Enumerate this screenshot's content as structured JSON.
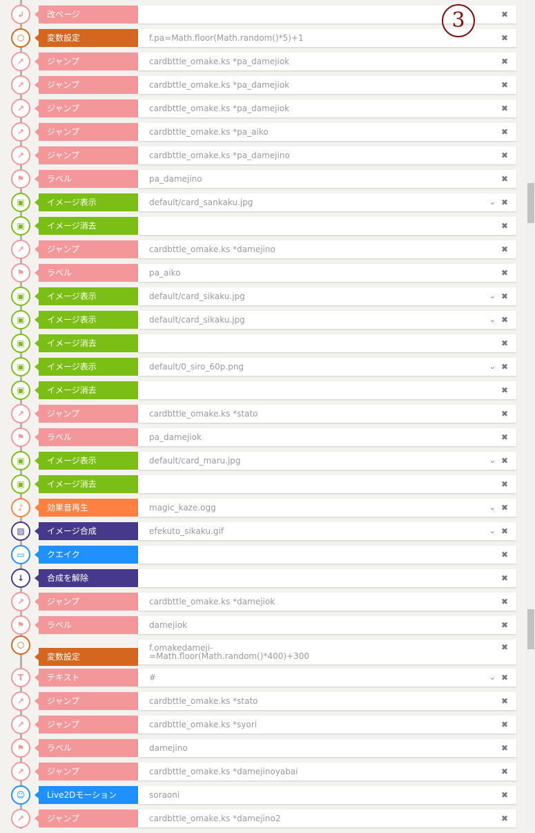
{
  "colors": {
    "jump": "#f4979a",
    "variable": "#d5661f",
    "image": "#7bbf16",
    "sound": "#ff8040",
    "compose": "#46388a",
    "quake": "#1e90ff",
    "live2d": "#1e90ff",
    "text": "#f4979a",
    "label": "#f4979a",
    "page": "#f4979a"
  },
  "annotation": "3",
  "rows": [
    {
      "type": "page",
      "icon": "return-icon",
      "label": "改ページ",
      "value": ""
    },
    {
      "type": "variable",
      "icon": "cube-icon",
      "label": "変数設定",
      "value": "f.pa=Math.floor(Math.random()*5)+1"
    },
    {
      "type": "jump",
      "icon": "jump-icon",
      "label": "ジャンプ",
      "value": "cardbttle_omake.ks *pa_damejiok"
    },
    {
      "type": "jump",
      "icon": "jump-icon",
      "label": "ジャンプ",
      "value": "cardbttle_omake.ks *pa_damejiok"
    },
    {
      "type": "jump",
      "icon": "jump-icon",
      "label": "ジャンプ",
      "value": "cardbttle_omake.ks *pa_damejiok"
    },
    {
      "type": "jump",
      "icon": "jump-icon",
      "label": "ジャンプ",
      "value": "cardbttle_omake.ks *pa_aiko"
    },
    {
      "type": "jump",
      "icon": "jump-icon",
      "label": "ジャンプ",
      "value": "cardbttle_omake.ks *pa_damejino"
    },
    {
      "type": "label",
      "icon": "flag-icon",
      "label": "ラベル",
      "value": "pa_damejino"
    },
    {
      "type": "image",
      "icon": "image-show-icon",
      "label": "イメージ表示",
      "value": "default/card_sankaku.jpg",
      "chevron": true
    },
    {
      "type": "image",
      "icon": "image-clear-icon",
      "label": "イメージ消去",
      "value": ""
    },
    {
      "type": "jump",
      "icon": "jump-icon",
      "label": "ジャンプ",
      "value": "cardbttle_omake.ks *damejino"
    },
    {
      "type": "label",
      "icon": "flag-icon",
      "label": "ラベル",
      "value": "pa_aiko"
    },
    {
      "type": "image",
      "icon": "image-show-icon",
      "label": "イメージ表示",
      "value": "default/card_sikaku.jpg",
      "chevron": true
    },
    {
      "type": "image",
      "icon": "image-show-icon",
      "label": "イメージ表示",
      "value": "default/card_sikaku.jpg",
      "chevron": true
    },
    {
      "type": "image",
      "icon": "image-clear-icon",
      "label": "イメージ消去",
      "value": ""
    },
    {
      "type": "image",
      "icon": "image-show-icon",
      "label": "イメージ表示",
      "value": "default/0_siro_60p.png",
      "chevron": true
    },
    {
      "type": "image",
      "icon": "image-clear-icon",
      "label": "イメージ消去",
      "value": ""
    },
    {
      "type": "jump",
      "icon": "jump-icon",
      "label": "ジャンプ",
      "value": "cardbttle_omake.ks *stato"
    },
    {
      "type": "label",
      "icon": "flag-icon",
      "label": "ラベル",
      "value": "pa_damejiok"
    },
    {
      "type": "image",
      "icon": "image-show-icon",
      "label": "イメージ表示",
      "value": "default/card_maru.jpg",
      "chevron": true
    },
    {
      "type": "image",
      "icon": "image-clear-icon",
      "label": "イメージ消去",
      "value": ""
    },
    {
      "type": "sound",
      "icon": "sound-file-icon",
      "label": "効果音再生",
      "value": "magic_kaze.ogg",
      "chevron": true
    },
    {
      "type": "compose",
      "icon": "picture-icon",
      "label": "イメージ合成",
      "value": "efekuto_sikaku.gif",
      "chevron": true
    },
    {
      "type": "quake",
      "icon": "quake-icon",
      "label": "クエイク",
      "value": ""
    },
    {
      "type": "compose",
      "icon": "uncompose-icon",
      "label": "合成を解除",
      "value": ""
    },
    {
      "type": "jump",
      "icon": "jump-icon",
      "label": "ジャンプ",
      "value": "cardbttle_omake.ks *damejiok"
    },
    {
      "type": "label",
      "icon": "flag-icon",
      "label": "ラベル",
      "value": "damejiok"
    },
    {
      "type": "variable",
      "icon": "cube-icon",
      "label": "変数設定",
      "value": "f.omakedameji-\n=Math.floor(Math.random()*400)+300",
      "tall": true
    },
    {
      "type": "text",
      "icon": "text-icon",
      "label": "テキスト",
      "value": "#",
      "chevron": true
    },
    {
      "type": "jump",
      "icon": "jump-icon",
      "label": "ジャンプ",
      "value": "cardbttle_omake.ks *stato"
    },
    {
      "type": "jump",
      "icon": "jump-icon",
      "label": "ジャンプ",
      "value": "cardbttle_omake.ks *syori"
    },
    {
      "type": "label",
      "icon": "flag-icon",
      "label": "ラベル",
      "value": "damejino"
    },
    {
      "type": "jump",
      "icon": "jump-icon",
      "label": "ジャンプ",
      "value": "cardbttle_omake.ks *damejinoyabai"
    },
    {
      "type": "live2d",
      "icon": "live2d-icon",
      "label": "Live2Dモーション",
      "value": "soraoni"
    },
    {
      "type": "jump",
      "icon": "jump-icon",
      "label": "ジャンプ",
      "value": "cardbttle_omake.ks *damejino2"
    }
  ]
}
